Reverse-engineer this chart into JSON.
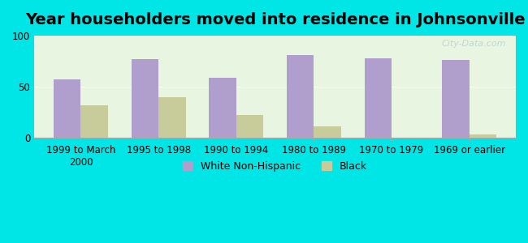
{
  "title": "Year householders moved into residence in Johnsonville",
  "categories": [
    "1999 to March\n2000",
    "1995 to 1998",
    "1990 to 1994",
    "1980 to 1989",
    "1970 to 1979",
    "1969 or earlier"
  ],
  "white_values": [
    57,
    77,
    59,
    81,
    78,
    76
  ],
  "black_values": [
    32,
    40,
    22,
    11,
    0,
    3
  ],
  "white_color": "#b09fcc",
  "black_color": "#c8cb9a",
  "background_color": "#00e5e5",
  "plot_bg": "#e8f5e0",
  "ylim": [
    0,
    100
  ],
  "yticks": [
    0,
    50,
    100
  ],
  "bar_width": 0.35,
  "legend_white": "White Non-Hispanic",
  "legend_black": "Black",
  "title_fontsize": 14,
  "tick_fontsize": 8.5,
  "legend_fontsize": 9
}
